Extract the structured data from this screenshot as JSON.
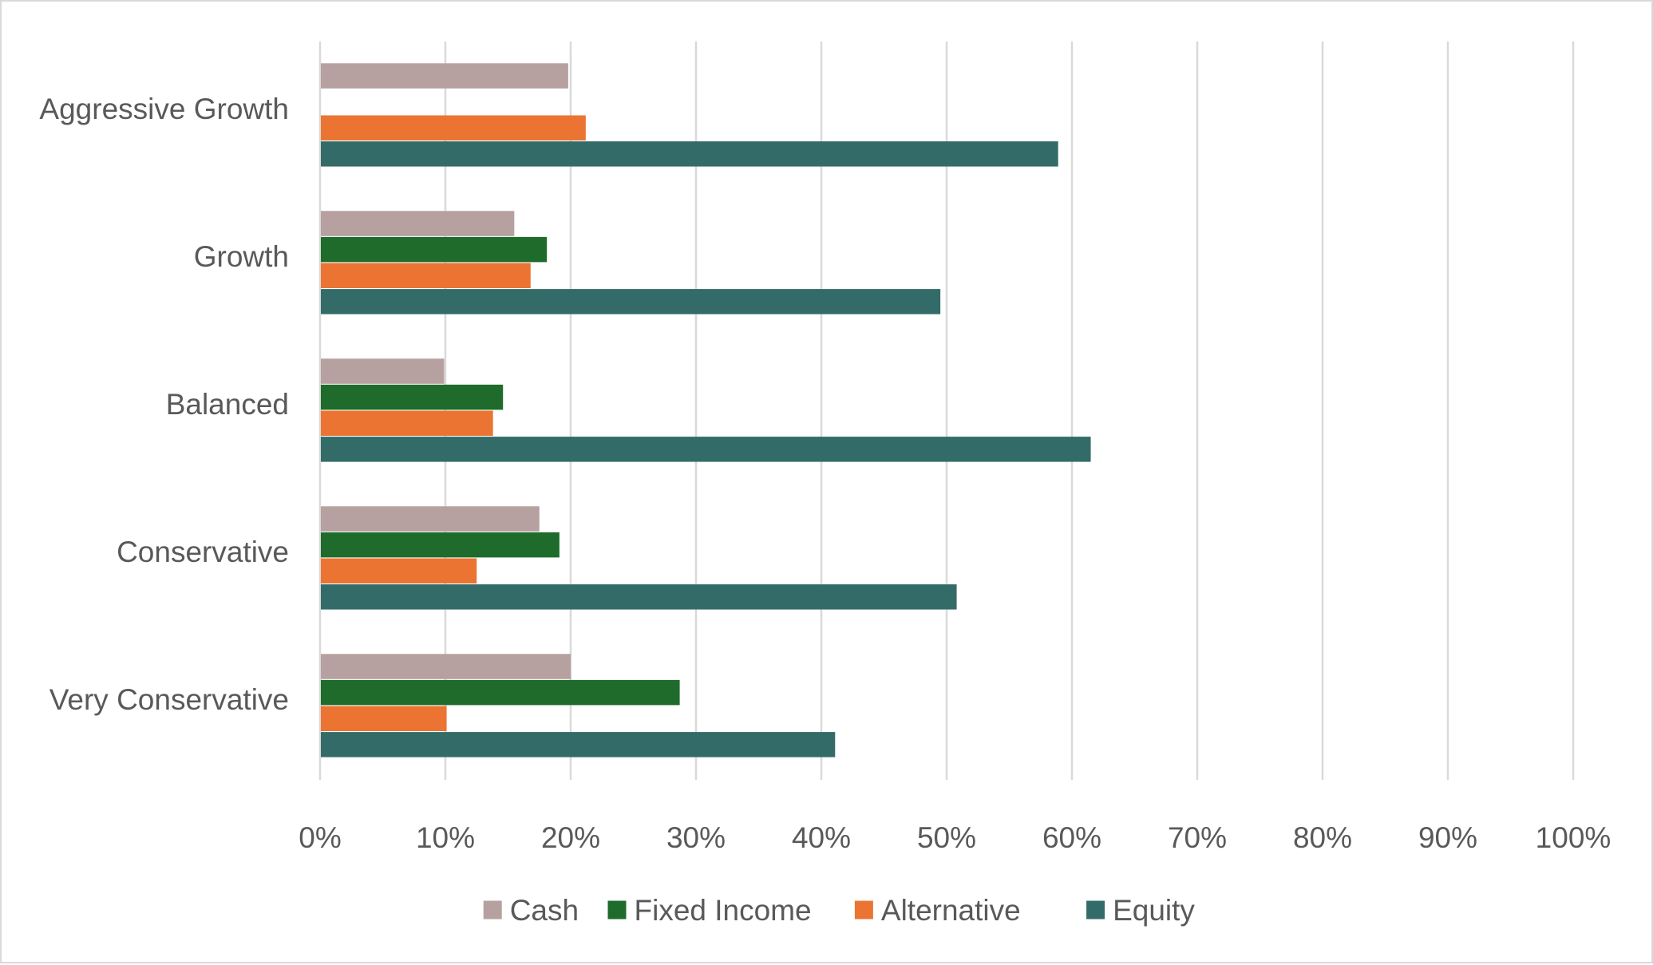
{
  "chart_data": {
    "type": "bar",
    "orientation": "horizontal",
    "title": "",
    "xlabel": "",
    "ylabel": "",
    "xlim": [
      0,
      100
    ],
    "x_ticks": [
      "0%",
      "10%",
      "20%",
      "30%",
      "40%",
      "50%",
      "60%",
      "70%",
      "80%",
      "90%",
      "100%"
    ],
    "grid": true,
    "legend_position": "bottom",
    "categories": [
      "Aggressive Growth",
      "Growth",
      "Balanced",
      "Conservative",
      "Very Conservative"
    ],
    "series": [
      {
        "name": "Cash",
        "color": "#b7a0a0",
        "values": [
          19.8,
          15.5,
          9.9,
          17.5,
          20.0
        ]
      },
      {
        "name": "Fixed Income",
        "color": "#1e6b2b",
        "values": [
          0,
          18.1,
          14.6,
          19.1,
          28.7
        ]
      },
      {
        "name": "Alternative",
        "color": "#eb7433",
        "values": [
          21.2,
          16.8,
          13.8,
          12.5,
          10.1
        ]
      },
      {
        "name": "Equity",
        "color": "#336b68",
        "values": [
          58.9,
          49.5,
          61.5,
          50.8,
          41.1
        ]
      }
    ]
  }
}
